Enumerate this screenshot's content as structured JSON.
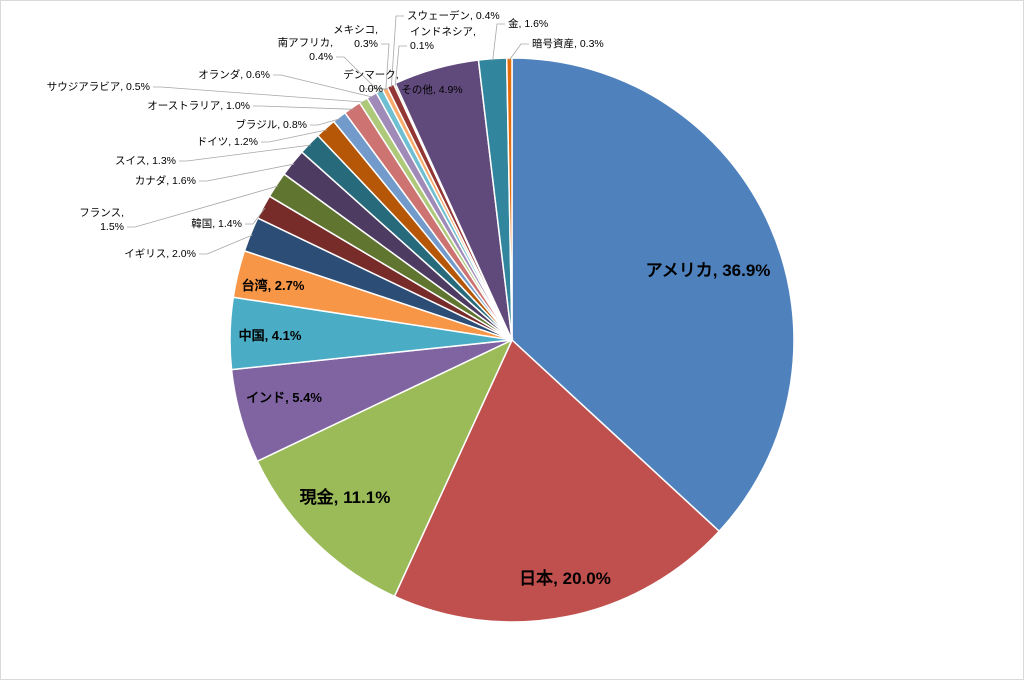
{
  "chart_data": {
    "type": "pie",
    "title": "",
    "start_angle_deg": 0,
    "direction": "clockwise",
    "slices": [
      {
        "label": "アメリカ",
        "value": 36.9,
        "display": "アメリカ, 36.9%",
        "color": "#4F81BD"
      },
      {
        "label": "日本",
        "value": 20.0,
        "display": "日本, 20.0%",
        "color": "#C0504D"
      },
      {
        "label": "現金",
        "value": 11.1,
        "display": "現金, 11.1%",
        "color": "#9BBB59"
      },
      {
        "label": "インド",
        "value": 5.4,
        "display": "インド, 5.4%",
        "color": "#8064A2"
      },
      {
        "label": "中国",
        "value": 4.1,
        "display": "中国, 4.1%",
        "color": "#4BACC6"
      },
      {
        "label": "台湾",
        "value": 2.7,
        "display": "台湾, 2.7%",
        "color": "#F79646"
      },
      {
        "label": "イギリス",
        "value": 2.0,
        "display": "イギリス, 2.0%",
        "color": "#2C4D75"
      },
      {
        "label": "韓国",
        "value": 1.4,
        "display": "韓国, 1.4%",
        "color": "#772C2A"
      },
      {
        "label": "フランス",
        "value": 1.5,
        "display": "フランス, 1.5%",
        "color": "#5F7530"
      },
      {
        "label": "カナダ",
        "value": 1.6,
        "display": "カナダ, 1.6%",
        "color": "#4D3B62"
      },
      {
        "label": "スイス",
        "value": 1.3,
        "display": "スイス, 1.3%",
        "color": "#276A7C"
      },
      {
        "label": "ドイツ",
        "value": 1.2,
        "display": "ドイツ, 1.2%",
        "color": "#B65708"
      },
      {
        "label": "ブラジル",
        "value": 0.8,
        "display": "ブラジル, 0.8%",
        "color": "#729ACA"
      },
      {
        "label": "オーストラリア",
        "value": 1.0,
        "display": "オーストラリア, 1.0%",
        "color": "#CD7371"
      },
      {
        "label": "サウジアラビア",
        "value": 0.5,
        "display": "サウジアラビア, 0.5%",
        "color": "#AFC97A"
      },
      {
        "label": "オランダ",
        "value": 0.6,
        "display": "オランダ, 0.6%",
        "color": "#A08BB8"
      },
      {
        "label": "南アフリカ",
        "value": 0.4,
        "display": "南アフリカ, 0.4%",
        "color": "#6FBFD2"
      },
      {
        "label": "メキシコ",
        "value": 0.3,
        "display": "メキシコ, 0.3%",
        "color": "#F9AB6B"
      },
      {
        "label": "デンマーク",
        "value": 0.0,
        "display": "デンマーク, 0.0%",
        "color": "#3A5F8E"
      },
      {
        "label": "スウェーデン",
        "value": 0.4,
        "display": "スウェーデン, 0.4%",
        "color": "#943634"
      },
      {
        "label": "インドネシア",
        "value": 0.1,
        "display": "インドネシア, 0.1%",
        "color": "#77933C"
      },
      {
        "label": "その他",
        "value": 4.9,
        "display": "その他, 4.9%",
        "color": "#604A7B"
      },
      {
        "label": "金",
        "value": 1.6,
        "display": "金, 1.6%",
        "color": "#31859C"
      },
      {
        "label": "暗号資産",
        "value": 0.3,
        "display": "暗号資産, 0.3%",
        "color": "#E46C0A"
      }
    ],
    "legend": "none",
    "data_labels": "category, percentage"
  }
}
